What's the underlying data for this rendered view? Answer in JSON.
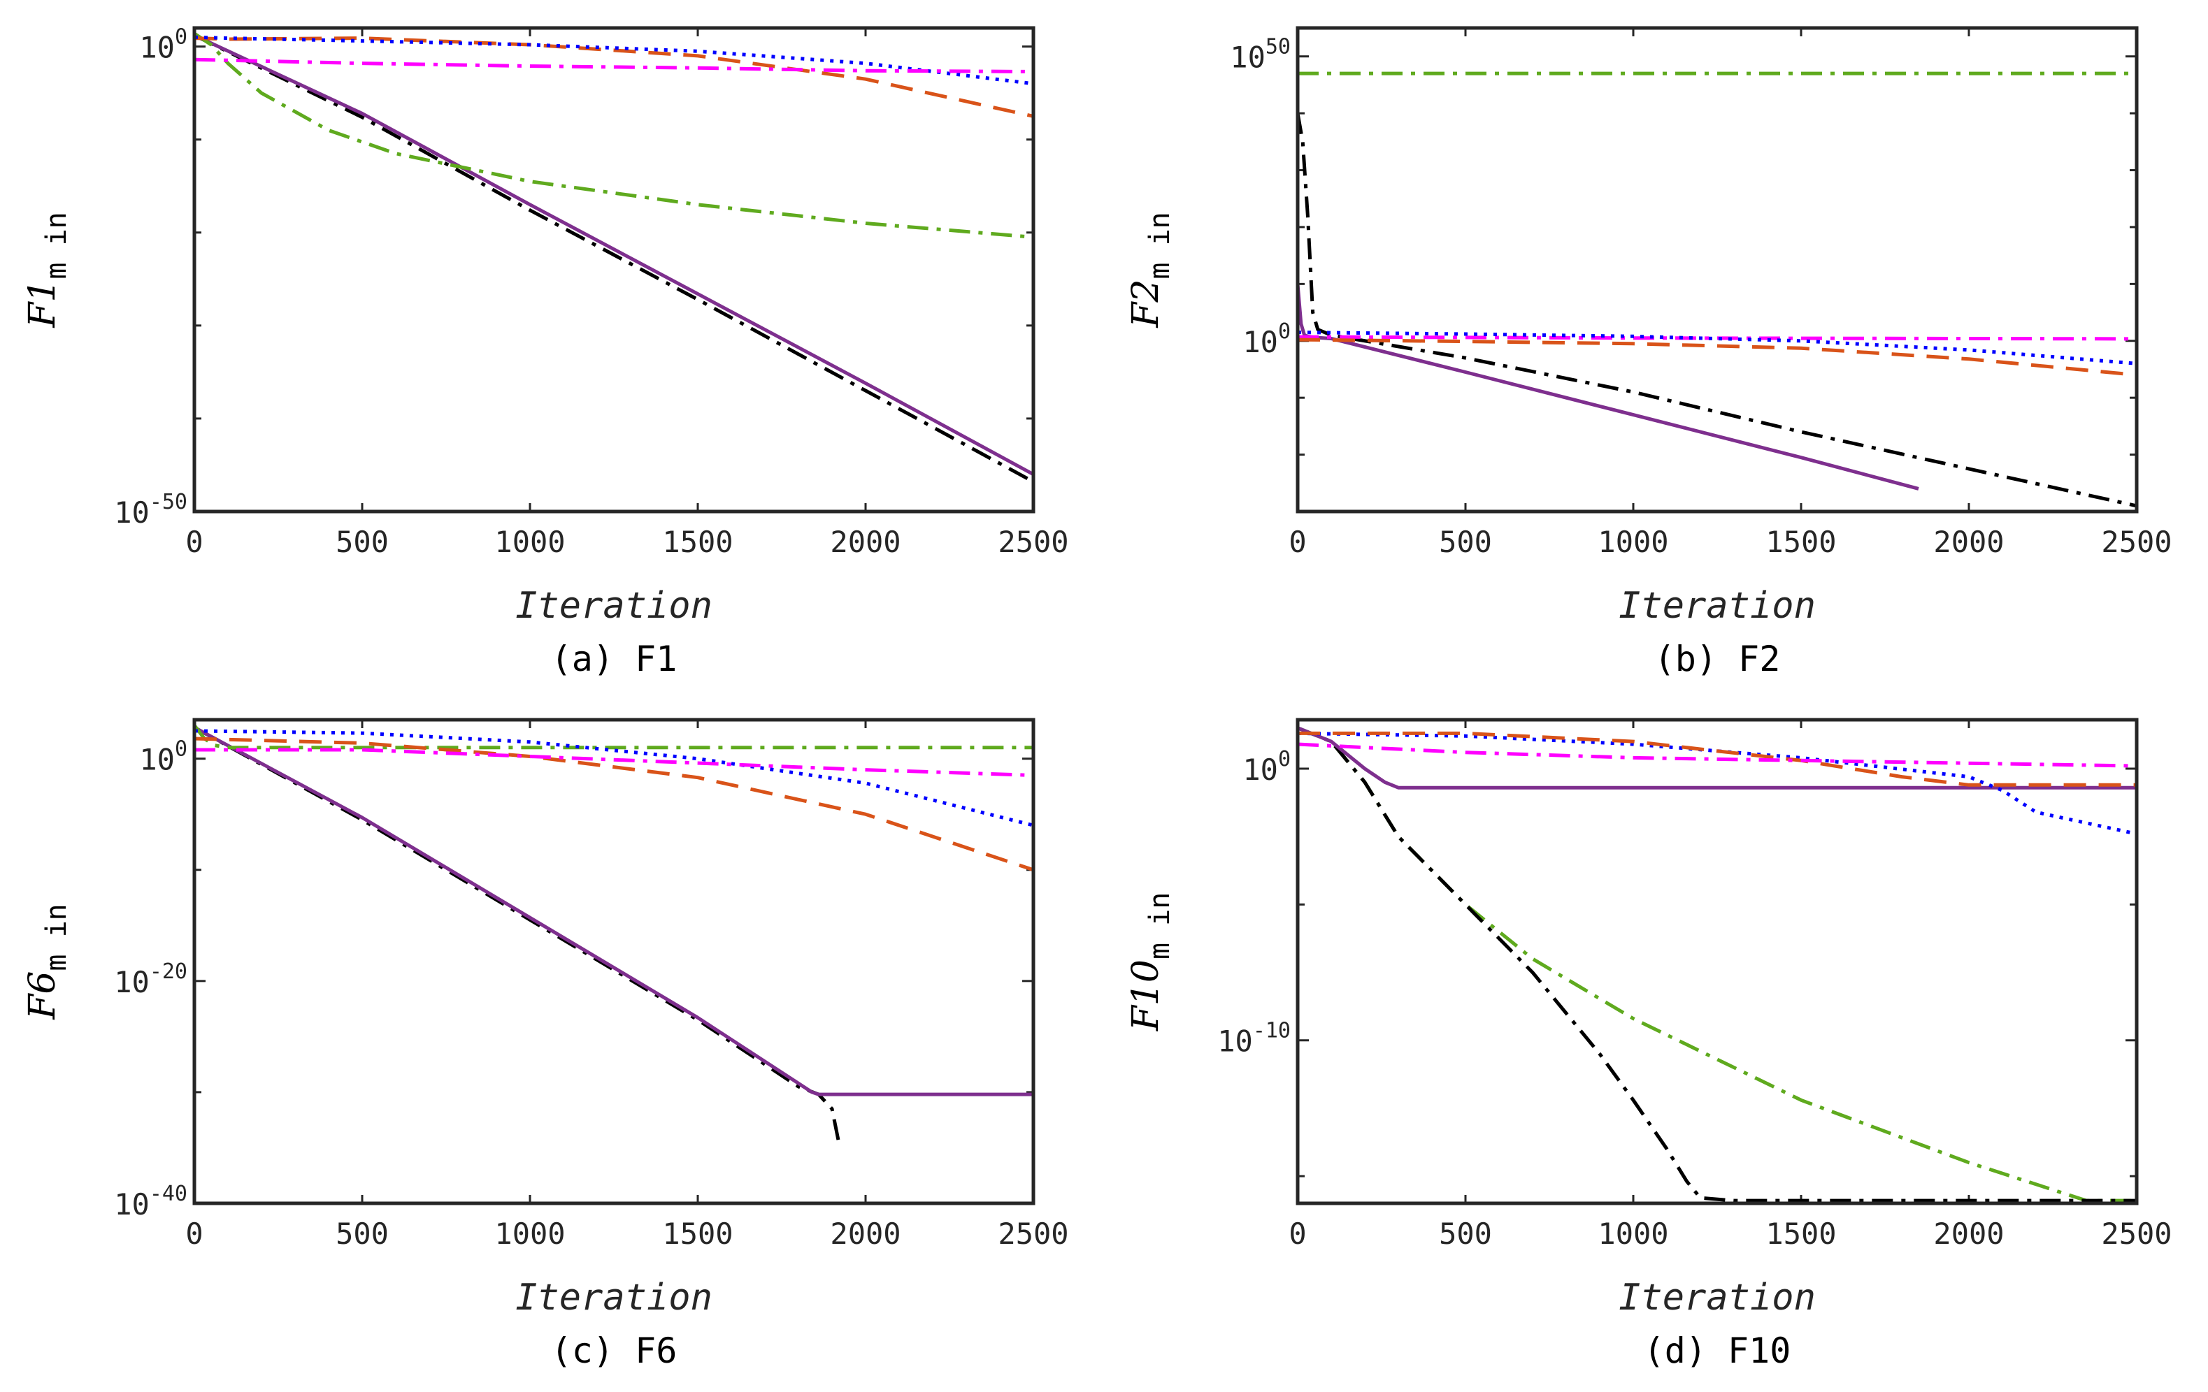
{
  "figure": {
    "x_axis_title": "Iteration",
    "line_styles": {
      "black": {
        "color": "#000000",
        "dash": "30 12 6 12"
      },
      "purple": {
        "color": "#7E2F8E",
        "dash": ""
      },
      "green": {
        "color": "#5FAA1E",
        "dash": "30 12 6 12"
      },
      "orange": {
        "color": "#D95319",
        "dash": "32 18"
      },
      "blue": {
        "color": "#0000FF",
        "dash": "5 9"
      },
      "magenta": {
        "color": "#FF00FF",
        "dash": "30 12 6 12"
      }
    }
  },
  "chart_data": [
    {
      "type": "line",
      "caption": "(a)  F1",
      "ylabel_main": "F1",
      "ylabel_sub": "m in",
      "xlabel": "Iteration",
      "xlim": [
        0,
        2500
      ],
      "ylim_log10": [
        -50,
        2
      ],
      "x_ticks": [
        0,
        500,
        1000,
        1500,
        2000,
        2500
      ],
      "y_ticks": [
        {
          "exp": 0,
          "label": "10",
          "sup": "0"
        },
        {
          "exp": -50,
          "label": "10",
          "sup": "-50"
        }
      ],
      "y_minor_ticks": [
        -10,
        -20,
        -30,
        -40
      ],
      "series": [
        {
          "name": "black",
          "x": [
            0,
            500,
            1000,
            1500,
            2000,
            2500
          ],
          "log10_y": [
            1.2,
            -7.6,
            -17.6,
            -27.2,
            -37.0,
            -46.8
          ]
        },
        {
          "name": "purple",
          "x": [
            0,
            500,
            1000,
            1500,
            2000,
            2500
          ],
          "log10_y": [
            1.2,
            -7.2,
            -17.0,
            -26.6,
            -36.2,
            -46.0
          ]
        },
        {
          "name": "green",
          "x": [
            0,
            50,
            100,
            200,
            400,
            600,
            800,
            1000,
            1500,
            2000,
            2500
          ],
          "log10_y": [
            1.4,
            0.2,
            -1.8,
            -5.0,
            -9.0,
            -11.5,
            -13.0,
            -14.5,
            -17.0,
            -19.0,
            -20.5
          ]
        },
        {
          "name": "orange",
          "x": [
            0,
            100,
            500,
            1000,
            1500,
            2000,
            2500
          ],
          "log10_y": [
            0.9,
            0.8,
            0.9,
            0.2,
            -1.0,
            -3.5,
            -7.5
          ]
        },
        {
          "name": "blue",
          "x": [
            0,
            100,
            500,
            1000,
            1500,
            2000,
            2500
          ],
          "log10_y": [
            1.0,
            0.9,
            0.6,
            0.2,
            -0.5,
            -1.8,
            -4.0
          ]
        },
        {
          "name": "magenta",
          "x": [
            0,
            500,
            1000,
            1500,
            2000,
            2500
          ],
          "log10_y": [
            -1.4,
            -1.8,
            -2.1,
            -2.3,
            -2.6,
            -2.7
          ]
        }
      ]
    },
    {
      "type": "line",
      "caption": "(b)  F2",
      "ylabel_main": "F2",
      "ylabel_sub": "m in",
      "xlabel": "Iteration",
      "xlim": [
        0,
        2500
      ],
      "ylim_log10": [
        -30,
        55
      ],
      "x_ticks": [
        0,
        500,
        1000,
        1500,
        2000,
        2500
      ],
      "y_ticks": [
        {
          "exp": 50,
          "label": "10",
          "sup": "50"
        },
        {
          "exp": 0,
          "label": "10",
          "sup": "0"
        }
      ],
      "y_minor_ticks": [
        40,
        30,
        20,
        10,
        -10,
        -20
      ],
      "series": [
        {
          "name": "green",
          "x": [
            0,
            2500
          ],
          "log10_y": [
            47,
            47
          ]
        },
        {
          "name": "black",
          "x": [
            0,
            15,
            30,
            45,
            60,
            100,
            500,
            1000,
            1500,
            2000,
            2500
          ],
          "log10_y": [
            40,
            35,
            22,
            5,
            2,
            1,
            -3,
            -9,
            -16,
            -22.5,
            -29
          ]
        },
        {
          "name": "purple",
          "x": [
            0,
            10,
            20,
            30,
            50,
            100,
            500,
            1000,
            1500,
            1850
          ],
          "log10_y": [
            10,
            3,
            1,
            0.8,
            0.6,
            0.4,
            -5.5,
            -13,
            -20.5,
            -26
          ]
        },
        {
          "name": "magenta",
          "x": [
            0,
            500,
            1000,
            1500,
            2000,
            2500
          ],
          "log10_y": [
            0.7,
            0.6,
            0.5,
            0.45,
            0.4,
            0.35
          ]
        },
        {
          "name": "blue",
          "x": [
            0,
            500,
            1000,
            1500,
            2000,
            2500
          ],
          "log10_y": [
            1.5,
            1.2,
            0.8,
            0.0,
            -1.6,
            -4.0
          ]
        },
        {
          "name": "orange",
          "x": [
            0,
            500,
            1000,
            1500,
            2000,
            2500
          ],
          "log10_y": [
            0.2,
            -0.1,
            -0.5,
            -1.3,
            -3.2,
            -6.0
          ]
        }
      ]
    },
    {
      "type": "line",
      "caption": "(c)  F6",
      "ylabel_main": "F6",
      "ylabel_sub": "m in",
      "xlabel": "Iteration",
      "xlim": [
        0,
        2500
      ],
      "ylim_log10": [
        -40,
        3.5
      ],
      "x_ticks": [
        0,
        500,
        1000,
        1500,
        2000,
        2500
      ],
      "y_ticks": [
        {
          "exp": 0,
          "label": "10",
          "sup": "0"
        },
        {
          "exp": -20,
          "label": "10",
          "sup": "-20"
        },
        {
          "exp": -40,
          "label": "10",
          "sup": "-40"
        }
      ],
      "y_minor_ticks": [
        -10,
        -30
      ],
      "series": [
        {
          "name": "black",
          "x": [
            0,
            500,
            1000,
            1500,
            1800,
            1860,
            1900,
            1920
          ],
          "log10_y": [
            2.8,
            -5.5,
            -14.5,
            -23.5,
            -29.5,
            -30.2,
            -31.5,
            -34.5
          ]
        },
        {
          "name": "purple",
          "x": [
            0,
            500,
            1000,
            1500,
            1840,
            1860,
            2500
          ],
          "log10_y": [
            2.8,
            -5.3,
            -14.3,
            -23.3,
            -30.0,
            -30.2,
            -30.2
          ]
        },
        {
          "name": "green",
          "x": [
            0,
            30,
            60,
            100,
            500,
            1000,
            2000,
            2500
          ],
          "log10_y": [
            3.0,
            1.8,
            1.2,
            1.0,
            1.0,
            1.0,
            1.0,
            1.0
          ]
        },
        {
          "name": "blue",
          "x": [
            0,
            500,
            1000,
            1500,
            2000,
            2500
          ],
          "log10_y": [
            2.5,
            2.3,
            1.5,
            0.0,
            -2.2,
            -6.0
          ]
        },
        {
          "name": "orange",
          "x": [
            0,
            500,
            1000,
            1500,
            2000,
            2500
          ],
          "log10_y": [
            1.8,
            1.4,
            0.2,
            -1.7,
            -5.0,
            -10.0
          ]
        },
        {
          "name": "magenta",
          "x": [
            0,
            500,
            1000,
            1500,
            2000,
            2500
          ],
          "log10_y": [
            0.8,
            0.8,
            0.2,
            -0.4,
            -1.0,
            -1.5
          ]
        }
      ]
    },
    {
      "type": "line",
      "caption": "(d)  F10",
      "ylabel_main": "F10",
      "ylabel_sub": "m in",
      "xlabel": "Iteration",
      "xlim": [
        0,
        2500
      ],
      "ylim_log10": [
        -16,
        1.8
      ],
      "x_ticks": [
        0,
        500,
        1000,
        1500,
        2000,
        2500
      ],
      "y_ticks": [
        {
          "exp": 0,
          "label": "10",
          "sup": "0"
        },
        {
          "exp": -10,
          "label": "10",
          "sup": "-10"
        }
      ],
      "y_minor_ticks": [
        -5,
        -15
      ],
      "series": [
        {
          "name": "green",
          "x": [
            0,
            100,
            200,
            300,
            500,
            700,
            1000,
            1500,
            2000,
            2200,
            2350,
            2500
          ],
          "log10_y": [
            1.5,
            1.0,
            -0.5,
            -2.5,
            -5.0,
            -7.0,
            -9.2,
            -12.2,
            -14.5,
            -15.3,
            -15.9,
            -15.9
          ]
        },
        {
          "name": "black",
          "x": [
            0,
            100,
            200,
            300,
            500,
            700,
            900,
            1000,
            1100,
            1160,
            1200,
            1300,
            2500
          ],
          "log10_y": [
            1.5,
            1.0,
            -0.5,
            -2.5,
            -5.0,
            -7.5,
            -10.5,
            -12.2,
            -14.0,
            -15.2,
            -15.8,
            -15.9,
            -15.9
          ]
        },
        {
          "name": "purple",
          "x": [
            0,
            100,
            200,
            260,
            300,
            350,
            2500
          ],
          "log10_y": [
            1.5,
            1.0,
            0.0,
            -0.5,
            -0.7,
            -0.7,
            -0.7
          ]
        },
        {
          "name": "blue",
          "x": [
            0,
            500,
            1000,
            1500,
            2000,
            2100,
            2200,
            2500
          ],
          "log10_y": [
            1.3,
            1.2,
            0.9,
            0.4,
            -0.3,
            -0.8,
            -1.6,
            -2.4
          ]
        },
        {
          "name": "orange",
          "x": [
            0,
            500,
            1000,
            1500,
            1800,
            2000,
            2500
          ],
          "log10_y": [
            1.3,
            1.3,
            1.0,
            0.3,
            -0.3,
            -0.6,
            -0.6
          ]
        },
        {
          "name": "magenta",
          "x": [
            0,
            500,
            1000,
            1500,
            2000,
            2500
          ],
          "log10_y": [
            0.9,
            0.6,
            0.4,
            0.3,
            0.2,
            0.1
          ]
        }
      ]
    }
  ]
}
